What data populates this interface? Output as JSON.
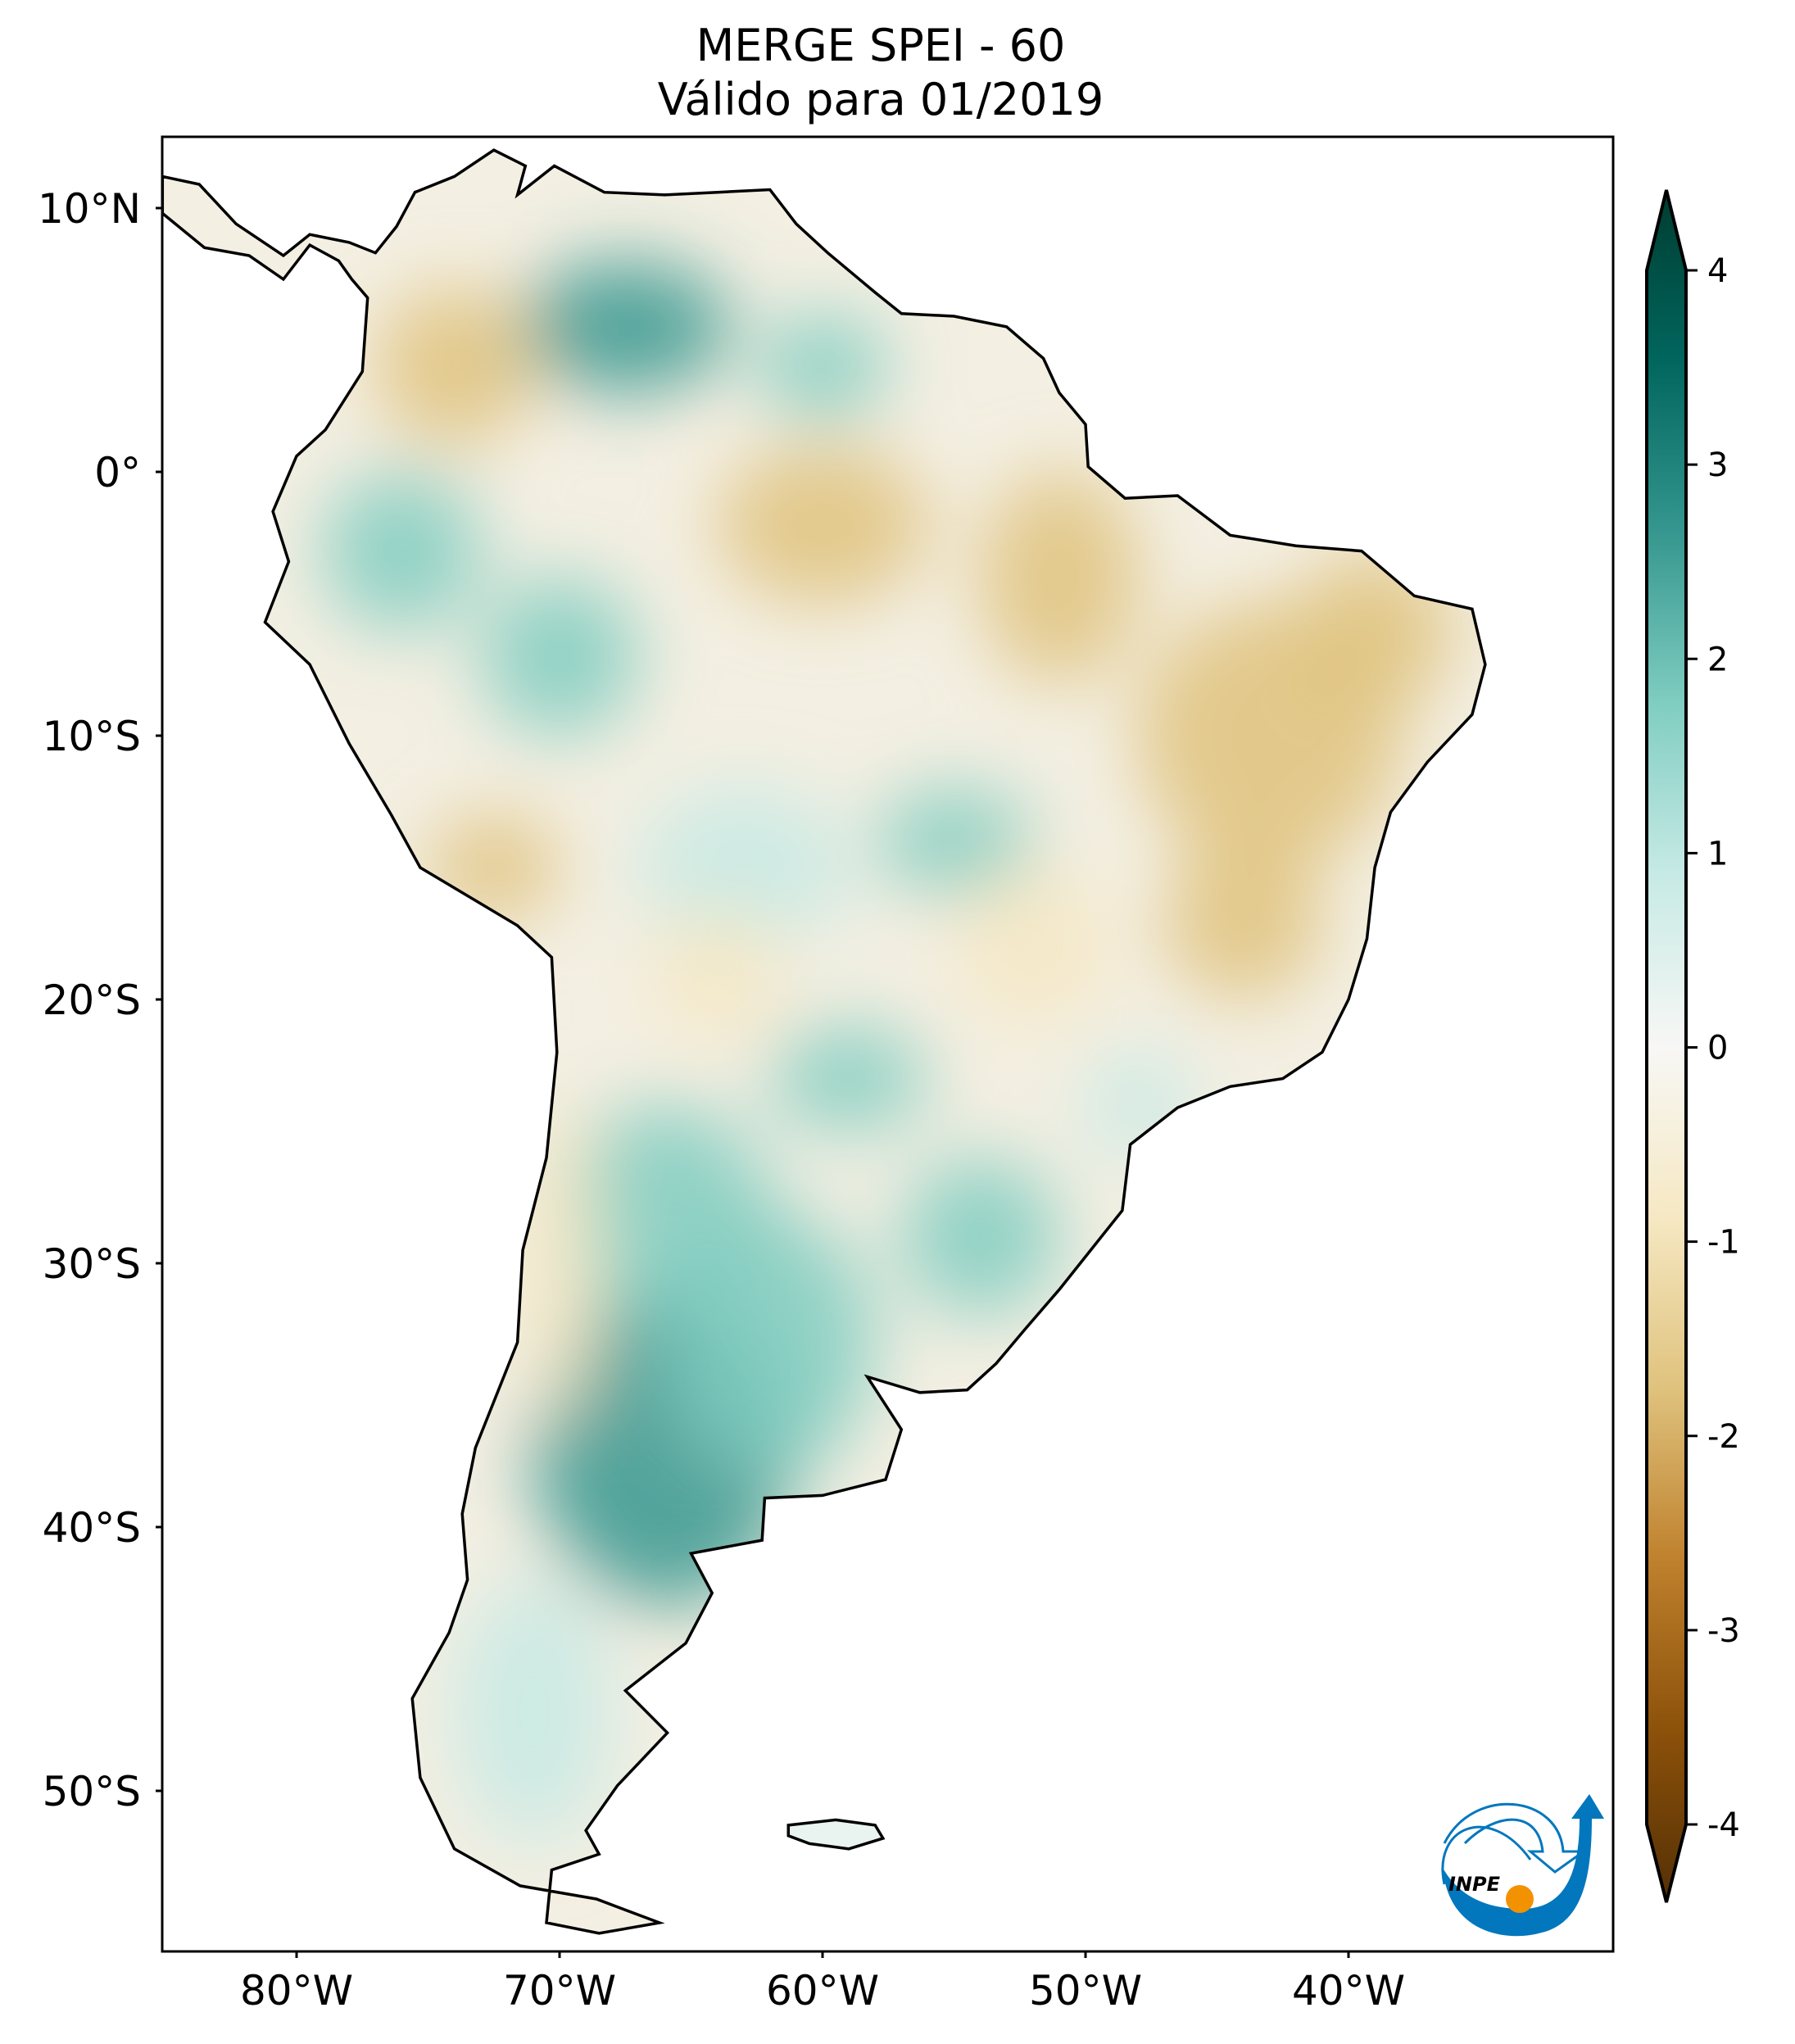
{
  "title": {
    "line1": "MERGE   SPEI - 60",
    "line2": "Válido para 01/2019"
  },
  "axes": {
    "lat_ticks": [
      {
        "value": 10,
        "label": "10°N"
      },
      {
        "value": 0,
        "label": "0°"
      },
      {
        "value": -10,
        "label": "10°S"
      },
      {
        "value": -20,
        "label": "20°S"
      },
      {
        "value": -30,
        "label": "30°S"
      },
      {
        "value": -40,
        "label": "40°S"
      },
      {
        "value": -50,
        "label": "50°S"
      }
    ],
    "lon_ticks": [
      {
        "value": -80,
        "label": "80°W"
      },
      {
        "value": -70,
        "label": "70°W"
      },
      {
        "value": -60,
        "label": "60°W"
      },
      {
        "value": -50,
        "label": "50°W"
      },
      {
        "value": -40,
        "label": "40°W"
      }
    ],
    "extent": {
      "lon": [
        -85.1,
        -29.9
      ],
      "lat": [
        -56.1,
        12.7
      ]
    }
  },
  "colorbar": {
    "range": [
      -4,
      4
    ],
    "extend": "both",
    "ticks": [
      {
        "value": 4,
        "label": "4"
      },
      {
        "value": 3,
        "label": "3"
      },
      {
        "value": 2,
        "label": "2"
      },
      {
        "value": 1,
        "label": "1"
      },
      {
        "value": 0,
        "label": "0"
      },
      {
        "value": -1,
        "label": "-1"
      },
      {
        "value": -2,
        "label": "-2"
      },
      {
        "value": -3,
        "label": "-3"
      },
      {
        "value": -4,
        "label": "-4"
      }
    ],
    "colors": [
      "#543005",
      "#8c510a",
      "#bf812d",
      "#dfc27d",
      "#f6e8c3",
      "#f7f7f5",
      "#c7eae5",
      "#80cdc1",
      "#35978f",
      "#01665e",
      "#003c30"
    ]
  },
  "logo": {
    "text": "INPE",
    "blue": "#0277bd",
    "orange": "#f39200"
  }
}
